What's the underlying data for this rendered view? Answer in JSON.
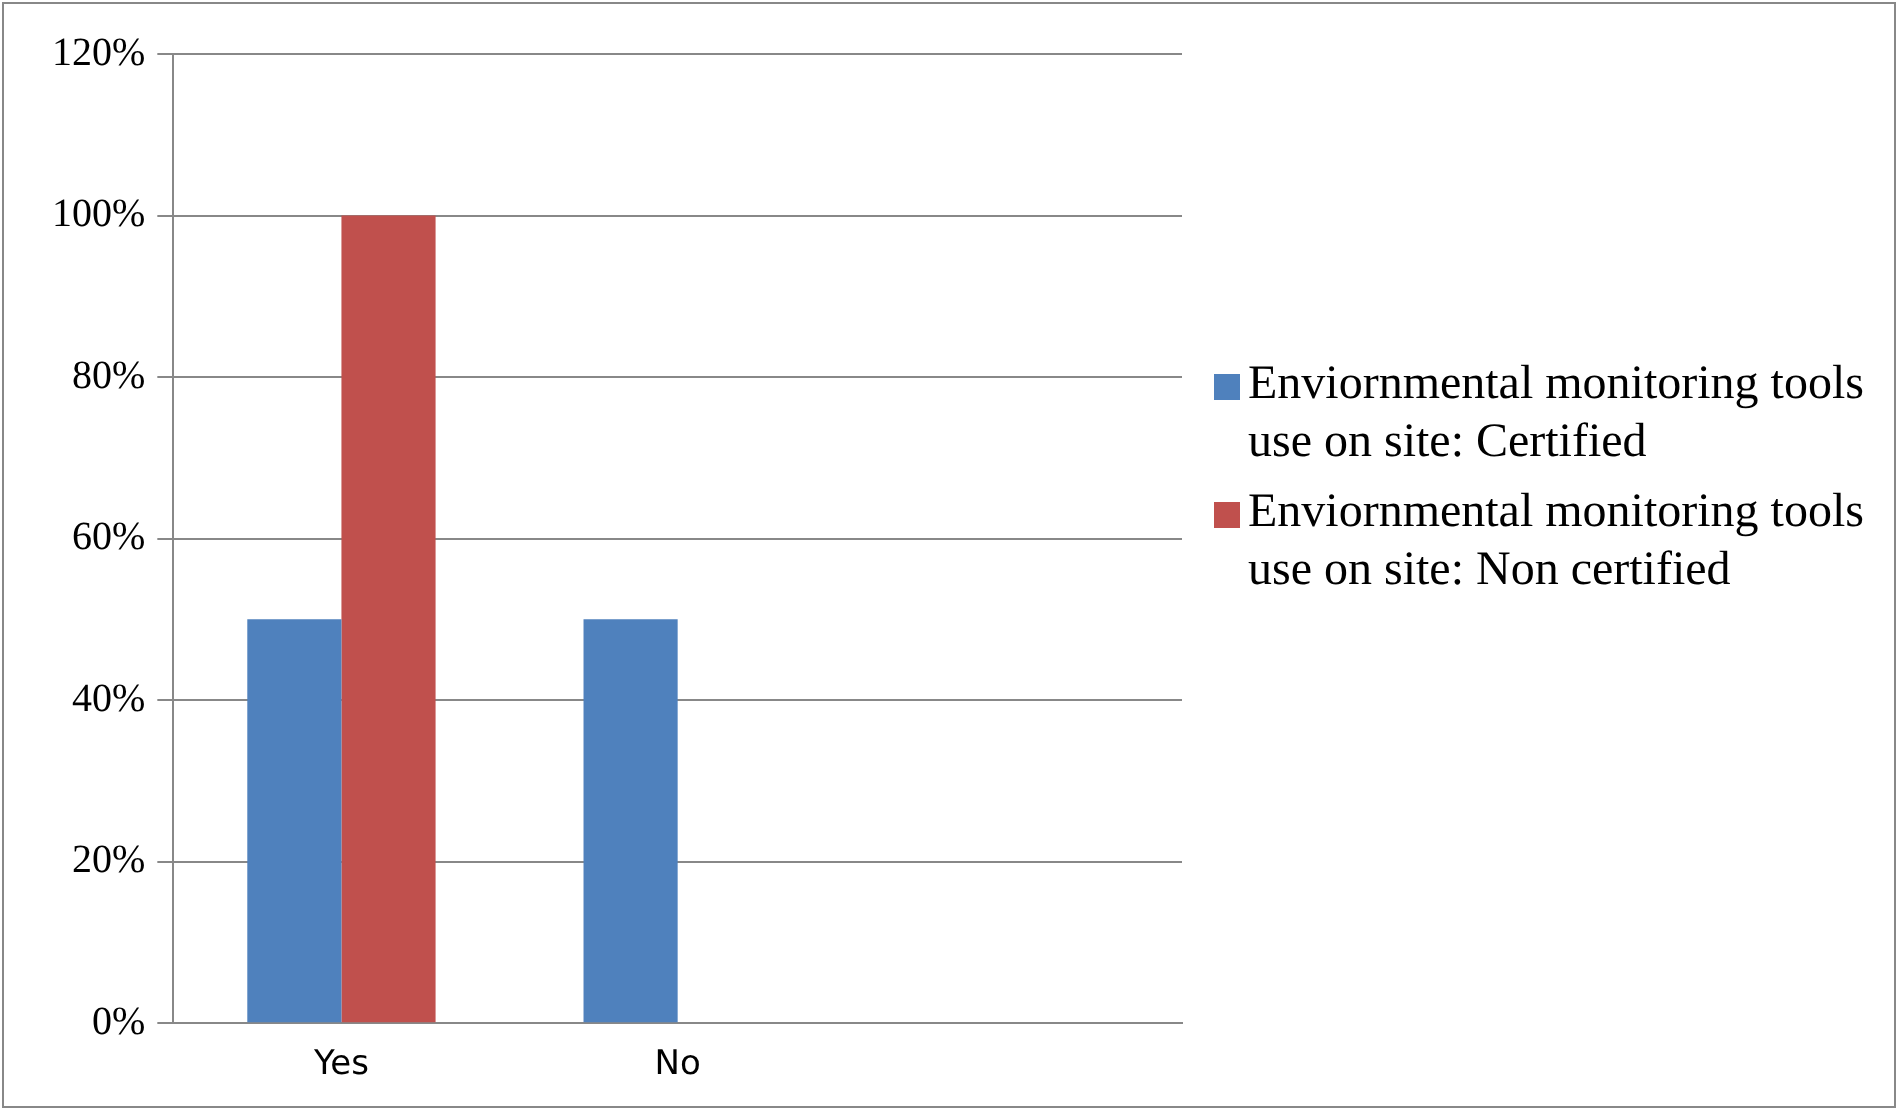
{
  "chart_data": {
    "type": "bar",
    "categories": [
      "Yes",
      "No",
      null
    ],
    "series": [
      {
        "name": "Enviornmental monitoring tools use on site: Certified",
        "color": "#4f81bd",
        "values": [
          50,
          50,
          null
        ]
      },
      {
        "name": "Enviornmental monitoring tools use on site: Non certified",
        "color": "#c0504d",
        "values": [
          100,
          0,
          null
        ]
      }
    ],
    "ylim": [
      0,
      120
    ],
    "yticks": [
      {
        "value": 0,
        "label": "0%"
      },
      {
        "value": 20,
        "label": "20%"
      },
      {
        "value": 40,
        "label": "40%"
      },
      {
        "value": 60,
        "label": "60%"
      },
      {
        "value": 80,
        "label": "80%"
      },
      {
        "value": 100,
        "label": "100%"
      },
      {
        "value": 120,
        "label": "120%"
      }
    ],
    "grid": "y",
    "legend": "right"
  }
}
